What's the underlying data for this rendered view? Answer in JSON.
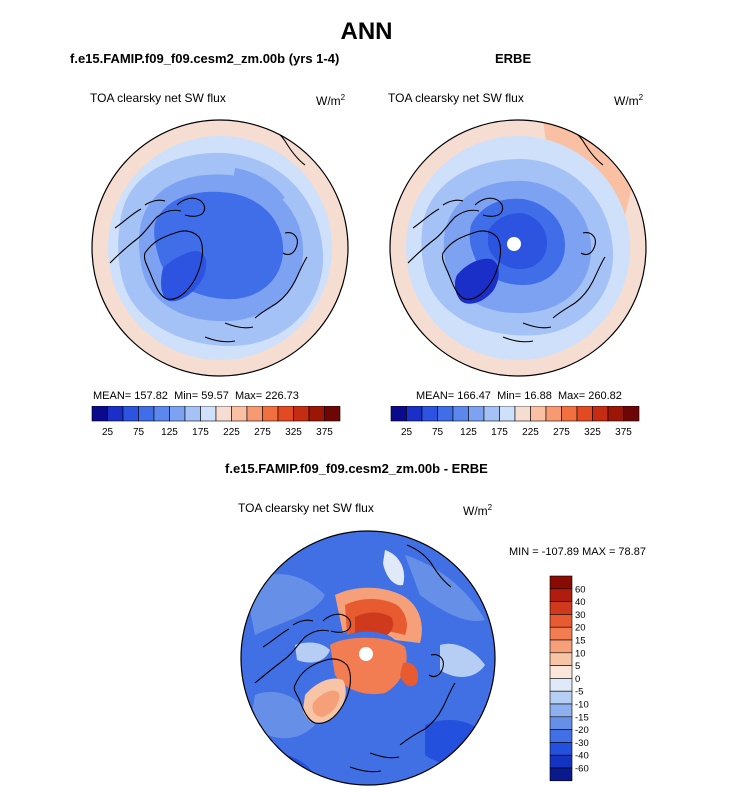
{
  "figure_title": "ANN",
  "chart_data": [
    {
      "type": "heatmap",
      "projection": "polar stereographic (north pole)",
      "panel_title": "f.e15.FAMIP.f09_f09.cesm2_zm.00b (yrs 1-4)",
      "variable": "TOA clearsky net SW flux",
      "units_base": "W/m",
      "units_exp": "2",
      "stats": {
        "mean_label": "MEAN=",
        "mean": "157.82",
        "min_label": "Min=",
        "min": "59.57",
        "max_label": "Max=",
        "max": "226.73"
      },
      "colorbar": {
        "orientation": "horizontal",
        "levels": [
          25,
          50,
          75,
          100,
          125,
          150,
          175,
          200,
          225,
          250,
          275,
          300,
          325,
          350,
          375
        ],
        "tick_labels": [
          "25",
          "75",
          "125",
          "175",
          "225",
          "275",
          "325",
          "375"
        ],
        "colors": [
          "#0a0a8c",
          "#1a2fc8",
          "#2c54e0",
          "#3f6ee8",
          "#5c88ee",
          "#7ea2f2",
          "#a5c2f6",
          "#cfe0fa",
          "#f6ddd2",
          "#fac0a4",
          "#f79a72",
          "#f2703f",
          "#e34a22",
          "#c52d12",
          "#9c1606",
          "#6e0606"
        ]
      }
    },
    {
      "type": "heatmap",
      "projection": "polar stereographic (north pole)",
      "panel_title": "ERBE",
      "variable": "TOA clearsky net SW flux",
      "units_base": "W/m",
      "units_exp": "2",
      "stats": {
        "mean_label": "MEAN=",
        "mean": "166.47",
        "min_label": "Min=",
        "min": "16.88",
        "max_label": "Max=",
        "max": "260.82"
      },
      "colorbar": {
        "orientation": "horizontal",
        "levels": [
          25,
          50,
          75,
          100,
          125,
          150,
          175,
          200,
          225,
          250,
          275,
          300,
          325,
          350,
          375
        ],
        "tick_labels": [
          "25",
          "75",
          "125",
          "175",
          "225",
          "275",
          "325",
          "375"
        ],
        "colors": [
          "#0a0a8c",
          "#1a2fc8",
          "#2c54e0",
          "#3f6ee8",
          "#5c88ee",
          "#7ea2f2",
          "#a5c2f6",
          "#cfe0fa",
          "#f6ddd2",
          "#fac0a4",
          "#f79a72",
          "#f2703f",
          "#e34a22",
          "#c52d12",
          "#9c1606",
          "#6e0606"
        ]
      }
    },
    {
      "type": "heatmap",
      "projection": "polar stereographic (north pole)",
      "panel_title": "f.e15.FAMIP.f09_f09.cesm2_zm.00b - ERBE",
      "variable": "TOA clearsky net SW flux",
      "units_base": "W/m",
      "units_exp": "2",
      "stats_label": "MIN = -107.89 MAX =  78.87",
      "stats": {
        "min": -107.89,
        "max": 78.87
      },
      "colorbar": {
        "orientation": "vertical",
        "levels": [
          -60,
          -40,
          -30,
          -20,
          -15,
          -10,
          -5,
          0,
          5,
          10,
          15,
          20,
          30,
          40,
          60
        ],
        "tick_labels": [
          "60",
          "40",
          "30",
          "20",
          "15",
          "10",
          "5",
          "0",
          "-5",
          "-10",
          "-15",
          "-20",
          "-30",
          "-40",
          "-60"
        ],
        "colors_top_to_bottom": [
          "#8a0a04",
          "#b01d0c",
          "#cf3a1c",
          "#e85a30",
          "#f27d52",
          "#f6a07a",
          "#f8c4a6",
          "#fbe6da",
          "#dfe9f8",
          "#b6cdf4",
          "#8eb0ee",
          "#6690e8",
          "#4170e4",
          "#2350dc",
          "#1334c0",
          "#0a1a8c"
        ]
      }
    }
  ]
}
